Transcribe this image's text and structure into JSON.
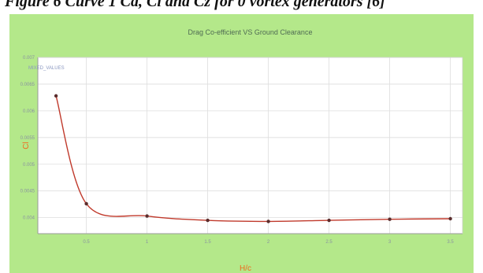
{
  "caption": "Figure 6 Curve 1 Cd, Cl and Cz for 0 vortex generators [6]",
  "chart_data": {
    "type": "line",
    "title": "Drag Co-efficient VS Ground Clearance",
    "xlabel": "H/c",
    "ylabel": "Cl",
    "xlim": [
      0.1,
      3.6
    ],
    "ylim": [
      0.0037,
      0.007
    ],
    "xticks": [
      "0.5",
      "1",
      "1.5",
      "2",
      "2.5",
      "3",
      "3.5"
    ],
    "yticks": [
      "0.004",
      "0.0045",
      "0.005",
      "0.0055",
      "0.006",
      "0.0065",
      "0.007"
    ],
    "grid": true,
    "series": [
      {
        "name": "MIXED_VALUES",
        "color": "#c0392b",
        "x": [
          0.25,
          0.5,
          1,
          1.5,
          2,
          2.5,
          3,
          3.5
        ],
        "y": [
          0.00628,
          0.00426,
          0.00403,
          0.00395,
          0.00393,
          0.00395,
          0.00397,
          0.00398
        ]
      }
    ]
  }
}
